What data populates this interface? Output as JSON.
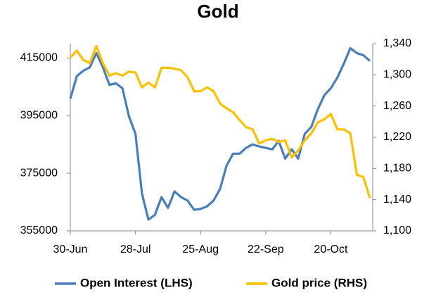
{
  "chart_data": {
    "type": "line",
    "title": "Gold",
    "categories": [
      "30-Jun",
      null,
      null,
      null,
      null,
      null,
      null,
      null,
      null,
      null,
      "28-Jul",
      null,
      null,
      null,
      null,
      null,
      null,
      null,
      null,
      null,
      "25-Aug",
      null,
      null,
      null,
      null,
      null,
      null,
      null,
      null,
      null,
      "22-Sep",
      null,
      null,
      null,
      null,
      null,
      null,
      null,
      null,
      null,
      "20-Oct",
      null,
      null,
      null,
      null,
      null,
      null
    ],
    "series": [
      {
        "name": "Open Interest (LHS)",
        "color": "#4a7ebb",
        "values": [
          400900,
          408700,
          410600,
          411800,
          416700,
          411800,
          405700,
          406200,
          404500,
          394800,
          388700,
          367900,
          358900,
          360600,
          366700,
          363000,
          368700,
          366700,
          365500,
          362300,
          362600,
          363500,
          365500,
          369600,
          377700,
          381800,
          381800,
          383800,
          385000,
          384300,
          383800,
          383300,
          386200,
          380100,
          383300,
          380100,
          388700,
          391100,
          397200,
          402100,
          404500,
          408200,
          413100,
          418400,
          416700,
          416000,
          414000
        ]
      },
      {
        "name": "Gold price (RHS)",
        "color": "#ffc000",
        "axis": "y2",
        "values": [
          1322,
          1331,
          1319,
          1315,
          1337,
          1315,
          1299,
          1302,
          1299,
          1304,
          1303,
          1284,
          1290,
          1284,
          1309,
          1309,
          1308,
          1306,
          1297,
          1279,
          1279,
          1284,
          1279,
          1263,
          1257,
          1252,
          1242,
          1233,
          1230,
          1212,
          1216,
          1218,
          1214,
          1216,
          1194,
          1203,
          1216,
          1225,
          1239,
          1243,
          1250,
          1230,
          1230,
          1225,
          1172,
          1169,
          1142
        ]
      }
    ],
    "ylim": [
      355000,
      420000
    ],
    "yticks": [
      355000,
      375000,
      395000,
      415000
    ],
    "y2lim": [
      1100,
      1340
    ],
    "y2ticks": [
      {
        "value": 1100,
        "label": "1,100"
      },
      {
        "value": 1140,
        "label": "1,140"
      },
      {
        "value": 1180,
        "label": "1,180"
      },
      {
        "value": 1220,
        "label": "1,220"
      },
      {
        "value": 1260,
        "label": "1,260"
      },
      {
        "value": 1300,
        "label": "1,300"
      },
      {
        "value": 1340,
        "label": "1,340"
      }
    ],
    "legend": "bottom",
    "grid": false
  }
}
